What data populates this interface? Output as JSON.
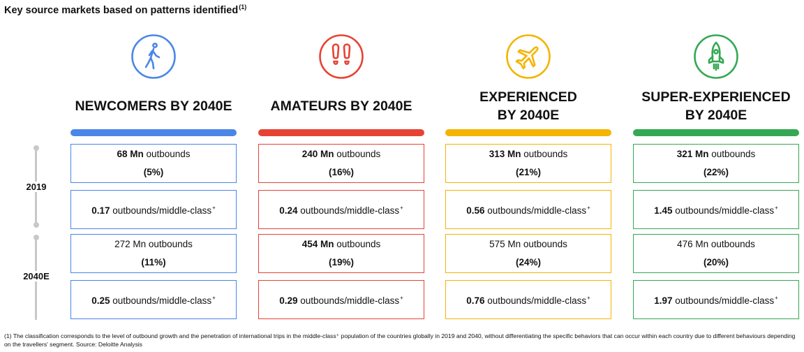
{
  "title": "Key source markets based on patterns identified",
  "title_note": "(1)",
  "years": [
    "2019",
    "2040E"
  ],
  "columns": [
    {
      "heading": [
        "NEWCOMERS BY 2040E"
      ],
      "icon": "walking-person-icon",
      "color": "#4a86e8",
      "rows": [
        {
          "bold": "68 Mn",
          "text": " outbounds",
          "line2": "(5%)"
        },
        {
          "bold": "0.17",
          "text": " outbounds/middle-class",
          "sup": "+"
        },
        {
          "bold": "",
          "text": "272 Mn outbounds",
          "line2": "(11%)"
        },
        {
          "bold": "0.25",
          "text": " outbounds/middle-class",
          "sup": "+"
        }
      ]
    },
    {
      "heading": [
        "AMATEURS BY 2040E"
      ],
      "icon": "footprints-icon",
      "color": "#e64334",
      "rows": [
        {
          "bold": "240 Mn",
          "text": " outbounds",
          "line2": "(16%)"
        },
        {
          "bold": "0.24",
          "text": " outbounds/middle-class",
          "sup": "+"
        },
        {
          "bold": "454 Mn",
          "text": " outbounds",
          "line2": "(19%)"
        },
        {
          "bold": "0.29",
          "text": " outbounds/middle-class",
          "sup": "+"
        }
      ]
    },
    {
      "heading": [
        "EXPERIENCED",
        "BY 2040E"
      ],
      "icon": "airplane-icon",
      "color": "#f4b400",
      "rows": [
        {
          "bold": "313 Mn",
          "text": " outbounds",
          "line2": "(21%)"
        },
        {
          "bold": "0.56",
          "text": " outbounds/middle-class",
          "sup": "+"
        },
        {
          "bold": "",
          "text": "575 Mn outbounds",
          "line2": "(24%)"
        },
        {
          "bold": "0.76",
          "text": " outbounds/middle-class",
          "sup": "+"
        }
      ]
    },
    {
      "heading": [
        "SUPER-EXPERIENCED",
        "BY 2040E"
      ],
      "icon": "rocket-icon",
      "color": "#34a853",
      "rows": [
        {
          "bold": "321 Mn",
          "text": " outbounds",
          "line2": "(22%)"
        },
        {
          "bold": "1.45",
          "text": " outbounds/middle-class",
          "sup": "+"
        },
        {
          "bold": "",
          "text": "476 Mn outbounds",
          "line2": "(20%)"
        },
        {
          "bold": "1.97",
          "text": " outbounds/middle-class",
          "sup": "+"
        }
      ]
    }
  ],
  "footnote": "(1) The classification corresponds to the level of outbound growth and the penetration of international trips in the middle-class⁺ population of the countries globally in 2019 and 2040, without differentiating the specific behaviors that can occur within each country due to different behaviours depending on the travellers' segment. Source: Deloitte Analysis"
}
